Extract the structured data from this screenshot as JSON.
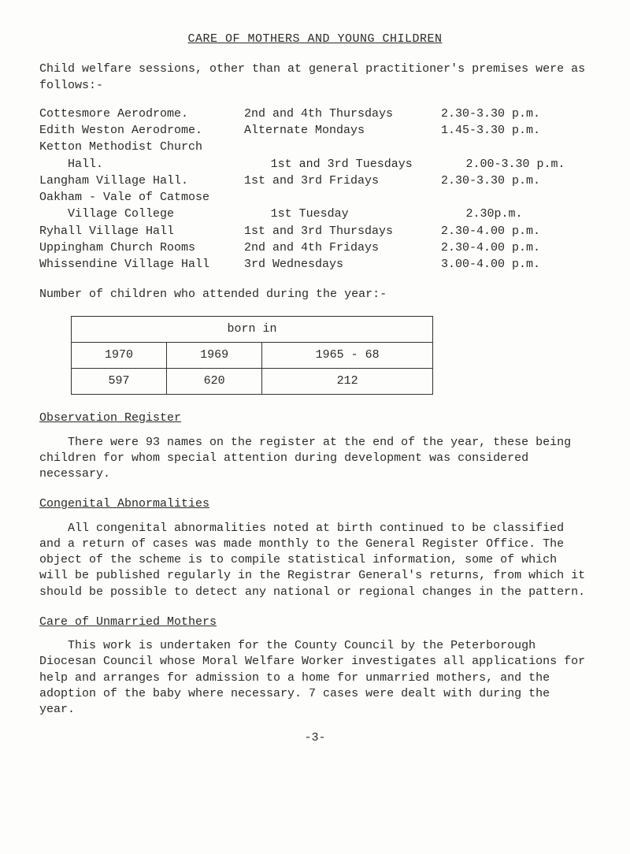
{
  "title": "CARE OF MOTHERS AND YOUNG CHILDREN",
  "intro": "Child welfare sessions, other than at general practitioner's premises were as follows:-",
  "schedule": [
    {
      "loc": "Cottesmore Aerodrome.",
      "day": "2nd and 4th Thursdays",
      "time": "2.30-3.30 p.m.",
      "indent": false
    },
    {
      "loc": "Edith Weston Aerodrome.",
      "day": "Alternate Mondays",
      "time": "1.45-3.30 p.m.",
      "indent": false
    },
    {
      "loc": "Ketton Methodist Church",
      "day": "",
      "time": "",
      "indent": false
    },
    {
      "loc": "Hall.",
      "day": "1st and 3rd Tuesdays",
      "time": "2.00-3.30 p.m.",
      "indent": true
    },
    {
      "loc": "Langham Village Hall.",
      "day": "1st and 3rd Fridays",
      "time": "2.30-3.30 p.m.",
      "indent": false
    },
    {
      "loc": "Oakham - Vale of Catmose",
      "day": "",
      "time": "",
      "indent": false
    },
    {
      "loc": "Village College",
      "day": "1st Tuesday",
      "time": "2.30p.m.",
      "indent": true
    },
    {
      "loc": "Ryhall Village Hall",
      "day": "1st and 3rd Thursdays",
      "time": "2.30-4.00 p.m.",
      "indent": false
    },
    {
      "loc": "Uppingham Church Rooms",
      "day": "2nd and 4th Fridays",
      "time": "2.30-4.00 p.m.",
      "indent": false
    },
    {
      "loc": "Whissendine Village Hall",
      "day": "3rd Wednesdays",
      "time": "3.00-4.00 p.m.",
      "indent": false
    }
  ],
  "number_line": "Number of children who attended during the year:-",
  "table": {
    "header": "born in",
    "cols": [
      "1970",
      "1969",
      "1965 - 68"
    ],
    "vals": [
      "597",
      "620",
      "212"
    ]
  },
  "obs_head": "Observation Register",
  "obs_para": "There were 93 names on the register at the end of the year, these being children for whom special attention during development was considered necessary.",
  "cong_head": "Congenital Abnormalities",
  "cong_para": "All congenital abnormalities noted at birth continued to be classified and a return of cases was made monthly to the General Register Office.  The object of the scheme is to compile statistical information, some of which will be published regularly in the Registrar General's returns, from which it should be possible to detect any national or regional changes in the pattern.",
  "care_head": "Care of Unmarried Mothers",
  "care_para": "This work is undertaken for the County Council by the Peterborough Diocesan Council whose Moral Welfare Worker investigates all applications for help and arranges for admission to a home for unmarried mothers, and the adoption of the baby where necessary. 7 cases were dealt with during the year.",
  "page": "-3-"
}
